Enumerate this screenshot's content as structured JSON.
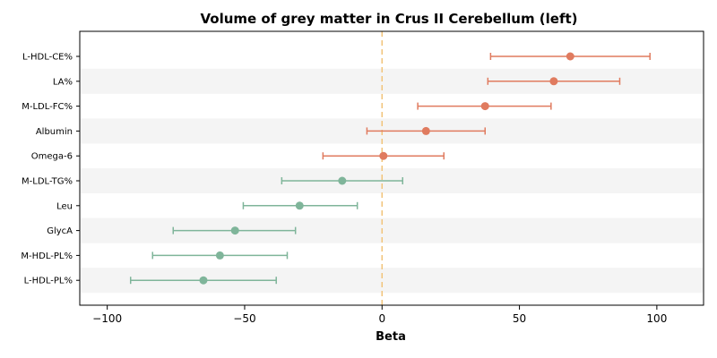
{
  "chart_data": {
    "type": "forest",
    "title": "Volume of grey matter in Crus II Cerebellum (left)",
    "xlabel": "Beta",
    "ylabel": "",
    "xlim": [
      -110,
      117
    ],
    "xticks": [
      -100,
      -50,
      0,
      50,
      100
    ],
    "xtick_labels": [
      "−100",
      "−50",
      "0",
      "50",
      "100"
    ],
    "reference_line": 0,
    "reference_color": "#f2c47a",
    "positive_color": "#e07b5f",
    "negative_color": "#7fb59a",
    "band_color": "#f4f4f4",
    "grid": false,
    "rows": [
      {
        "label": "L-HDL-CE%",
        "beta": 68.5,
        "lower": 39.5,
        "upper": 97.5,
        "direction": "positive"
      },
      {
        "label": "LA%",
        "beta": 62.5,
        "lower": 38.5,
        "upper": 86.5,
        "direction": "positive"
      },
      {
        "label": "M-LDL-FC%",
        "beta": 37.5,
        "lower": 13.0,
        "upper": 61.5,
        "direction": "positive"
      },
      {
        "label": "Albumin",
        "beta": 16.0,
        "lower": -5.5,
        "upper": 37.5,
        "direction": "positive"
      },
      {
        "label": "Omega-6",
        "beta": 0.5,
        "lower": -21.5,
        "upper": 22.5,
        "direction": "positive"
      },
      {
        "label": "M-LDL-TG%",
        "beta": -14.5,
        "lower": -36.5,
        "upper": 7.5,
        "direction": "negative"
      },
      {
        "label": "Leu",
        "beta": -30.0,
        "lower": -50.5,
        "upper": -9.0,
        "direction": "negative"
      },
      {
        "label": "GlycA",
        "beta": -53.5,
        "lower": -76.0,
        "upper": -31.5,
        "direction": "negative"
      },
      {
        "label": "M-HDL-PL%",
        "beta": -59.0,
        "lower": -83.5,
        "upper": -34.5,
        "direction": "negative"
      },
      {
        "label": "L-HDL-PL%",
        "beta": -65.0,
        "lower": -91.5,
        "upper": -38.5,
        "direction": "negative"
      }
    ]
  }
}
